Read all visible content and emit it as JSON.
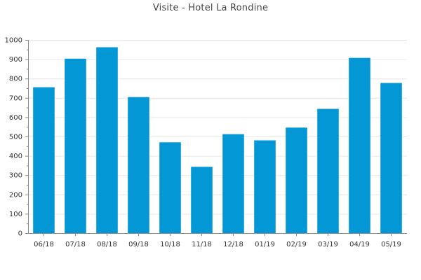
{
  "chart_data": {
    "type": "bar",
    "title": "Visite - Hotel La Rondine",
    "xlabel": "",
    "ylabel": "",
    "categories": [
      "06/18",
      "07/18",
      "08/18",
      "09/18",
      "10/18",
      "11/18",
      "12/18",
      "01/19",
      "02/19",
      "03/19",
      "04/19",
      "05/19"
    ],
    "values": [
      755,
      903,
      962,
      704,
      470,
      343,
      512,
      480,
      546,
      643,
      907,
      777
    ],
    "ylim": [
      0,
      1000
    ],
    "yticks": [
      0,
      100,
      200,
      300,
      400,
      500,
      600,
      700,
      800,
      900,
      1000
    ],
    "grid": true,
    "legend": "none",
    "bar_color": "#0397d6",
    "grid_color": "#e6e6e6",
    "axis_color": "#888888"
  }
}
